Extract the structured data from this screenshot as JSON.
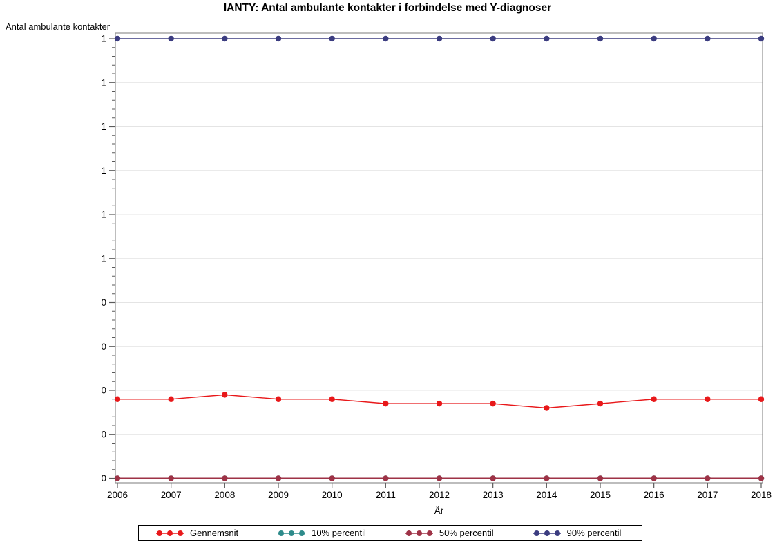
{
  "chart_data": {
    "type": "line",
    "title": "IANTY: Antal ambulante kontakter i forbindelse med Y-diagnoser",
    "ylabel": "Antal ambulante kontakter",
    "xlabel": "År",
    "x": [
      2006,
      2007,
      2008,
      2009,
      2010,
      2011,
      2012,
      2013,
      2014,
      2015,
      2016,
      2017,
      2018
    ],
    "series": [
      {
        "name": "Gennemsnit",
        "color": "#E8181A",
        "line_width": 1.4,
        "values": [
          0.18,
          0.18,
          0.19,
          0.18,
          0.18,
          0.17,
          0.17,
          0.17,
          0.16,
          0.17,
          0.18,
          0.18,
          0.18
        ]
      },
      {
        "name": "10% percentil",
        "color": "#2E8B8B",
        "line_width": 1.6,
        "values": [
          0,
          0,
          0,
          0,
          0,
          0,
          0,
          0,
          0,
          0,
          0,
          0,
          0
        ]
      },
      {
        "name": "50% percentil",
        "color": "#9E3246",
        "line_width": 2.0,
        "values": [
          0,
          0,
          0,
          0,
          0,
          0,
          0,
          0,
          0,
          0,
          0,
          0,
          0
        ]
      },
      {
        "name": "90% percentil",
        "color": "#3B3C80",
        "line_width": 1.6,
        "values": [
          1,
          1,
          1,
          1,
          1,
          1,
          1,
          1,
          1,
          1,
          1,
          1,
          1
        ]
      }
    ],
    "y_axis": {
      "min": 0,
      "max": 1,
      "major_step": 0.1,
      "tick_labels_bottom_to_top": [
        "0",
        "0",
        "0",
        "0",
        "0",
        "1",
        "1",
        "1",
        "1",
        "1",
        "1"
      ],
      "minor_ticks_per_interval": 4,
      "grid": true
    },
    "x_axis": {
      "tick_labels": [
        "2006",
        "2007",
        "2008",
        "2009",
        "2010",
        "2011",
        "2012",
        "2013",
        "2014",
        "2015",
        "2016",
        "2017",
        "2018"
      ]
    },
    "legend_position": "bottom",
    "colors": {
      "grid": "#E4E4E4",
      "frame": "#919191",
      "tick": "#5A5A5A",
      "text": "#000000",
      "background": "#FFFFFF"
    }
  }
}
